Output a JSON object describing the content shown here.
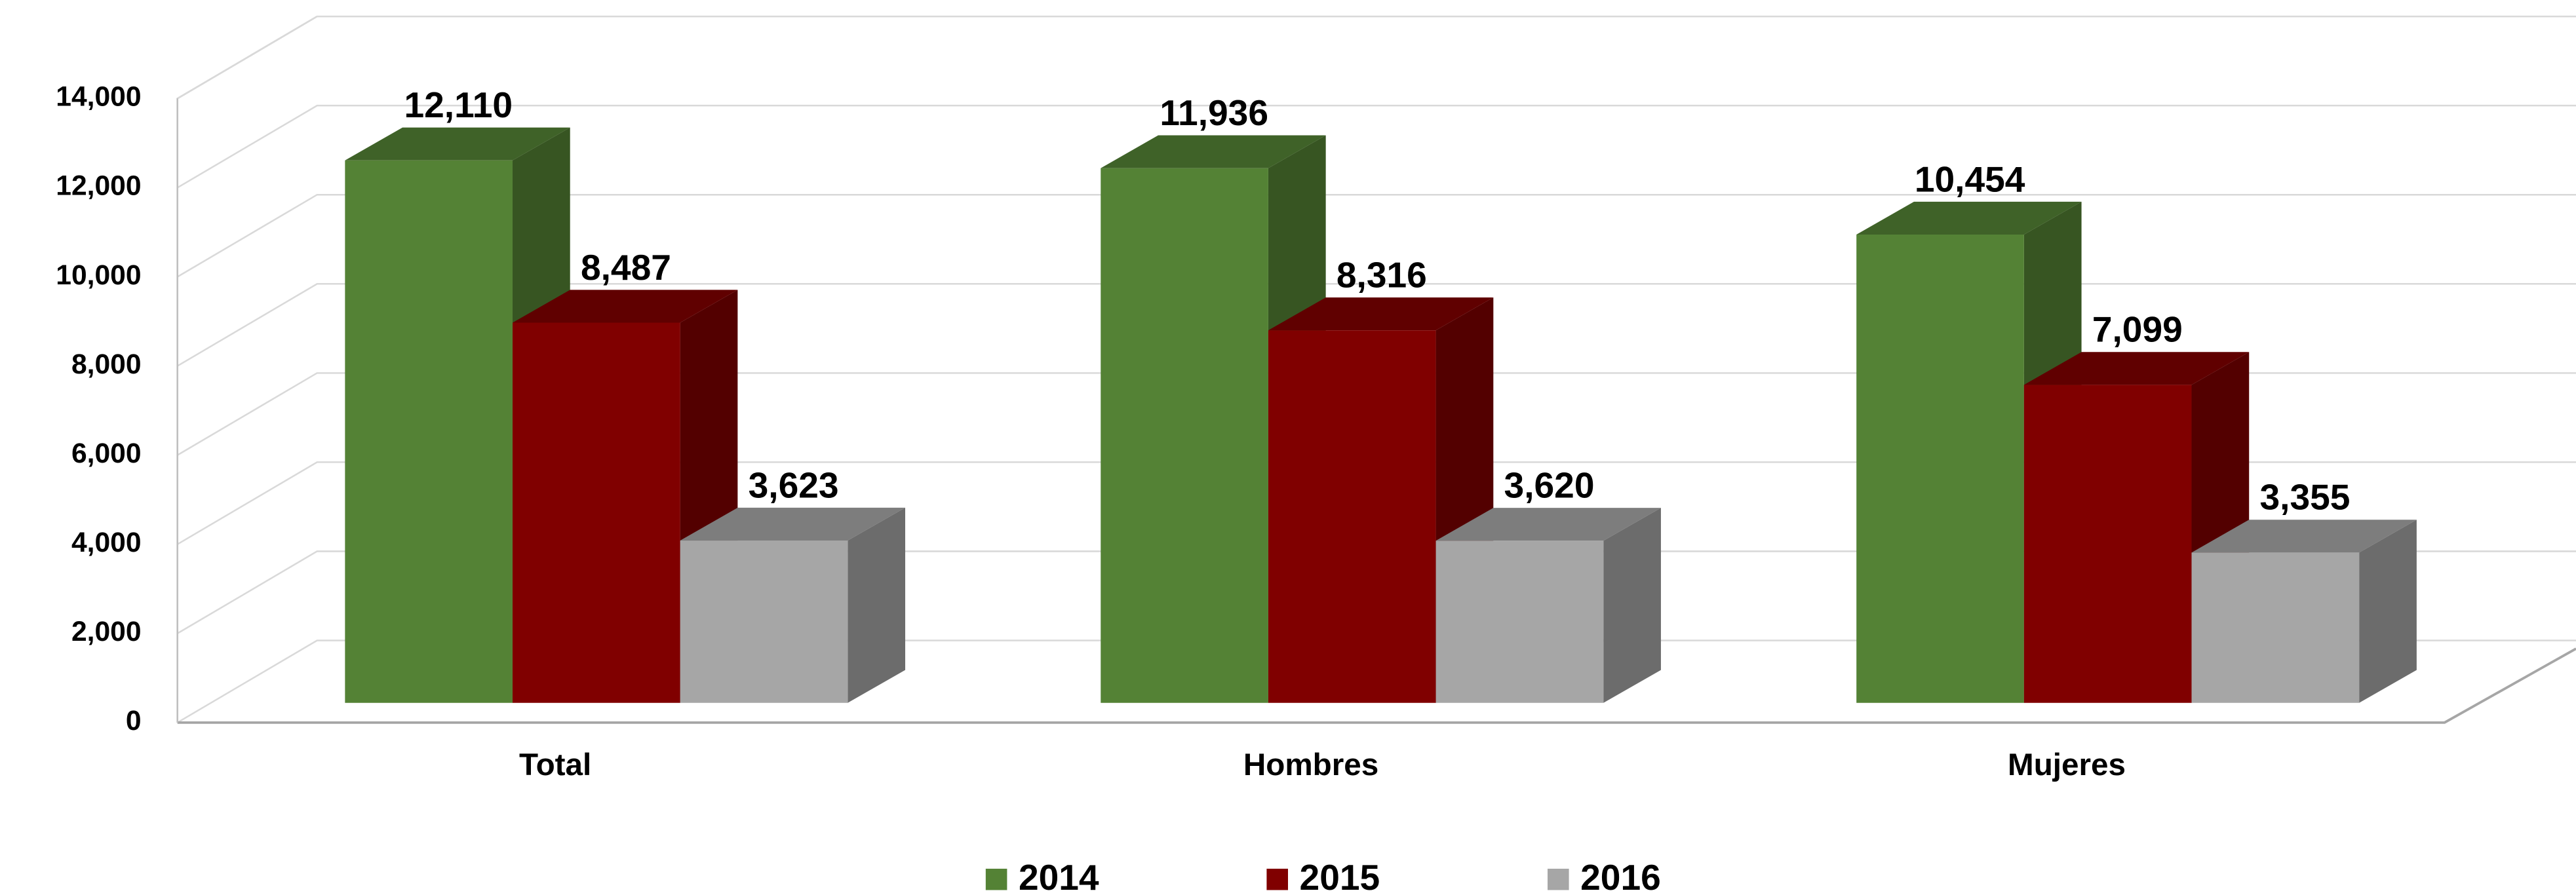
{
  "chart_data": {
    "type": "bar3d",
    "categories": [
      "Total",
      "Hombres",
      "Mujeres"
    ],
    "series": [
      {
        "name": "2014",
        "color": "#548235",
        "values": [
          12110,
          11936,
          10454
        ],
        "value_labels": [
          "12,110",
          "11,936",
          "10,454"
        ]
      },
      {
        "name": "2015",
        "color": "#800000",
        "values": [
          8487,
          8316,
          7099
        ],
        "value_labels": [
          "8,487",
          "8,316",
          "7,099"
        ]
      },
      {
        "name": "2016",
        "color": "#a6a6a6",
        "values": [
          3623,
          3620,
          3355
        ],
        "value_labels": [
          "3,623",
          "3,620",
          "3,355"
        ]
      }
    ],
    "ylim": [
      0,
      14000
    ],
    "yticks": [
      0,
      {
        "value": 2000,
        "label": "2,000"
      },
      {
        "value": 4000,
        "label": "4,000"
      },
      {
        "value": 6000,
        "label": "6,000"
      },
      {
        "value": 8000,
        "label": "8,000"
      },
      {
        "value": 10000,
        "label": "10,000"
      },
      {
        "value": 12000,
        "label": "12,000"
      },
      {
        "value": 14000,
        "label": "14,000"
      }
    ],
    "grid": true,
    "legend": "bottom"
  }
}
